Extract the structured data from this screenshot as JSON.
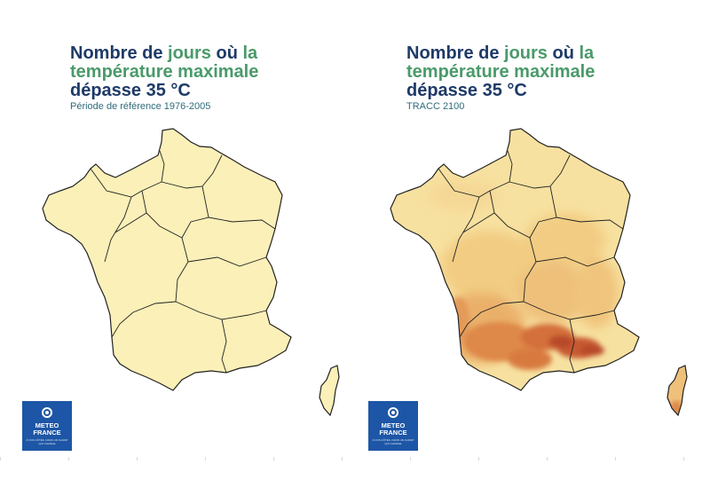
{
  "maps": [
    {
      "title_parts": [
        {
          "text": "Nombre de ",
          "hl": false
        },
        {
          "text": "jours",
          "hl": true
        },
        {
          "text": " où ",
          "hl": false
        },
        {
          "text": "la température",
          "hl": true
        },
        {
          "text": " maximale",
          "hl": true
        },
        {
          "text": " dépasse 35 °C",
          "hl": false
        }
      ],
      "subtitle": "Période de référence 1976-2005",
      "logo": {
        "line1": "METEO",
        "line2": "FRANCE",
        "tagline": "À VOS CÔTÉS, DANS UN CLIMAT QUI CHANGE"
      }
    },
    {
      "title_parts": [
        {
          "text": "Nombre de ",
          "hl": false
        },
        {
          "text": "jours",
          "hl": true
        },
        {
          "text": " où ",
          "hl": false
        },
        {
          "text": "la température",
          "hl": true
        },
        {
          "text": " maximale",
          "hl": true
        },
        {
          "text": " dépasse 35 °C",
          "hl": false
        }
      ],
      "subtitle": "TRACC 2100",
      "logo": {
        "line1": "METEO",
        "line2": "FRANCE",
        "tagline": "À VOS CÔTÉS, DANS UN CLIMAT QUI CHANGE"
      }
    }
  ],
  "colors": {
    "title": "#1e3a68",
    "title_highlight": "#4a9a6a",
    "subtitle": "#2e6b7a",
    "land_low": "#fbf0b8",
    "land_mid": "#f4d48a",
    "land_high": "#e9a85a",
    "land_hot": "#d4703a",
    "land_hottest": "#b84a2a",
    "border": "#222222",
    "logo_bg": "#1d56a6"
  }
}
